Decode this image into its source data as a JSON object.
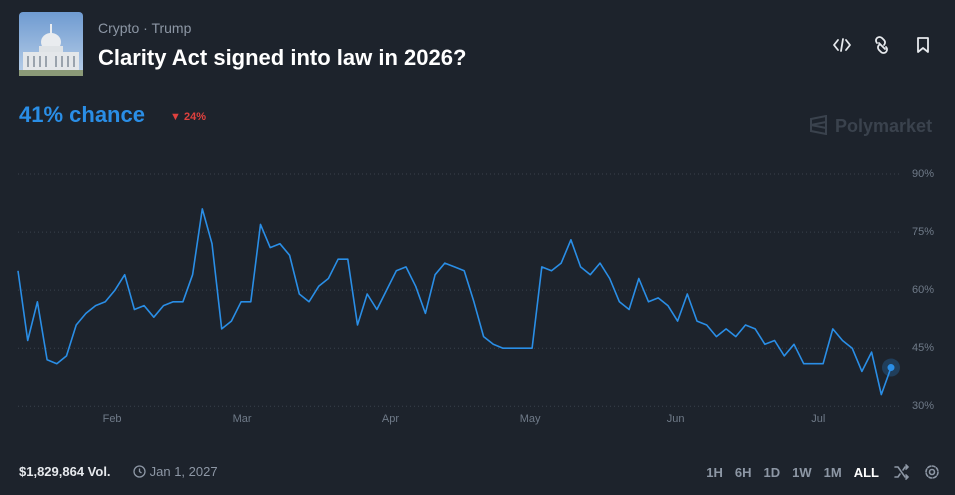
{
  "header": {
    "category": "Crypto",
    "tag": "Trump",
    "title": "Clarity Act signed into law in 2026?"
  },
  "odds": {
    "chance": "41% chance",
    "change": "24%"
  },
  "brand": "Polymarket",
  "chart_data": {
    "type": "line",
    "color": "#2a8ee6",
    "values": [
      65,
      47,
      57,
      42,
      41,
      43,
      51,
      54,
      56,
      57,
      60,
      64,
      55,
      56,
      53,
      56,
      57,
      57,
      64,
      81,
      72,
      50,
      52,
      57,
      57,
      77,
      71,
      72,
      69,
      59,
      57,
      61,
      63,
      68,
      68,
      51,
      59,
      55,
      60,
      65,
      66,
      61,
      54,
      64,
      67,
      66,
      65,
      57,
      48,
      46,
      45,
      45,
      45,
      45,
      66,
      65,
      67,
      73,
      66,
      64,
      67,
      63,
      57,
      55,
      63,
      57,
      58,
      56,
      52,
      59,
      52,
      51,
      48,
      50,
      48,
      51,
      50,
      46,
      47,
      43,
      46,
      41,
      41,
      41,
      50,
      47,
      45,
      39,
      44,
      33,
      40
    ],
    "xlim": [
      0,
      90
    ],
    "xticks": [
      {
        "value": 9.7,
        "label": "Feb"
      },
      {
        "value": 23.1,
        "label": "Mar"
      },
      {
        "value": 38.4,
        "label": "Apr"
      },
      {
        "value": 52.8,
        "label": "May"
      },
      {
        "value": 67.8,
        "label": "Jun"
      },
      {
        "value": 82.5,
        "label": "Jul"
      }
    ],
    "ylim": [
      25,
      95
    ],
    "yticks": [
      {
        "value": 30,
        "label": "30%"
      },
      {
        "value": 45,
        "label": "45%"
      },
      {
        "value": 60,
        "label": "60%"
      },
      {
        "value": 75,
        "label": "75%"
      },
      {
        "value": 90,
        "label": "90%"
      }
    ],
    "grid": true
  },
  "footer": {
    "volume": "$1,829,864 Vol.",
    "end_date": "Jan 1, 2027",
    "ranges": [
      "1H",
      "6H",
      "1D",
      "1W",
      "1M",
      "ALL"
    ],
    "active_range": "ALL"
  }
}
